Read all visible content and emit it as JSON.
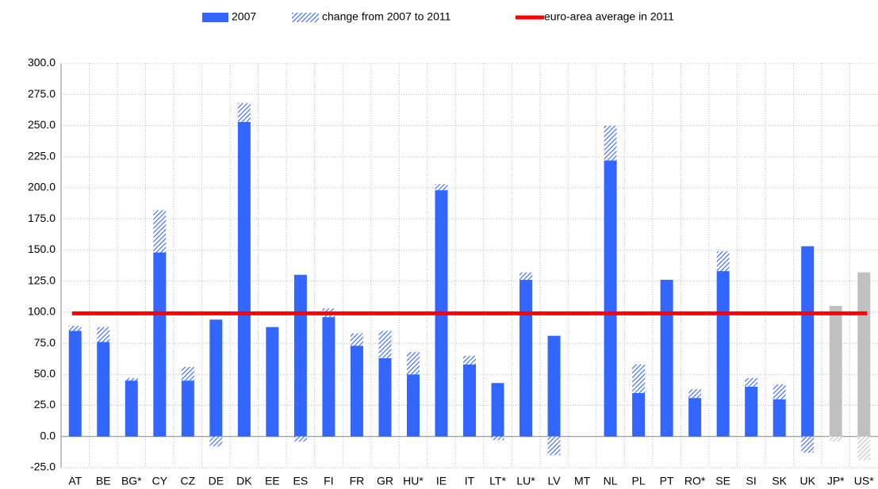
{
  "chart_data": {
    "type": "stacked-bar",
    "categories": [
      "AT",
      "BE",
      "BG*",
      "CY",
      "CZ",
      "DE",
      "DK",
      "EE",
      "ES",
      "FI",
      "FR",
      "GR",
      "HU*",
      "IE",
      "IT",
      "LT*",
      "LU*",
      "LV",
      "MT",
      "NL",
      "PL",
      "PT",
      "RO*",
      "SE",
      "SI",
      "SK",
      "UK",
      "JP*",
      "US*"
    ],
    "series": [
      {
        "name": "2007",
        "style": "solid",
        "colors": [
          "#3366ff",
          "#3366ff",
          "#3366ff",
          "#3366ff",
          "#3366ff",
          "#3366ff",
          "#3366ff",
          "#3366ff",
          "#3366ff",
          "#3366ff",
          "#3366ff",
          "#3366ff",
          "#3366ff",
          "#3366ff",
          "#3366ff",
          "#3366ff",
          "#3366ff",
          "#3366ff",
          "#3366ff",
          "#3366ff",
          "#3366ff",
          "#3366ff",
          "#3366ff",
          "#3366ff",
          "#3366ff",
          "#3366ff",
          "#3366ff",
          "#c0c0c0",
          "#c0c0c0"
        ],
        "values": [
          85,
          76,
          45,
          148,
          45,
          94,
          253,
          88,
          130,
          96,
          73,
          63,
          50,
          198,
          58,
          43,
          126,
          81,
          null,
          222,
          35,
          126,
          31,
          133,
          40,
          30,
          153,
          105,
          132
        ]
      },
      {
        "name": "change from 2007 to 2011",
        "style": "hatched",
        "colors": [
          "#3366ff",
          "#3366ff",
          "#3366ff",
          "#3366ff",
          "#3366ff",
          "#3366ff",
          "#3366ff",
          "#3366ff",
          "#3366ff",
          "#3366ff",
          "#3366ff",
          "#3366ff",
          "#3366ff",
          "#3366ff",
          "#3366ff",
          "#3366ff",
          "#3366ff",
          "#3366ff",
          "#3366ff",
          "#3366ff",
          "#3366ff",
          "#3366ff",
          "#3366ff",
          "#3366ff",
          "#3366ff",
          "#3366ff",
          "#3366ff",
          "#c0c0c0",
          "#c0c0c0"
        ],
        "values": [
          4,
          12,
          2,
          34,
          11,
          -8,
          15,
          0,
          -4,
          7,
          10,
          22,
          18,
          5,
          7,
          -3,
          6,
          -15,
          null,
          28,
          23,
          0,
          7,
          16,
          7,
          12,
          -13,
          -4,
          -19
        ]
      }
    ],
    "reference_line": {
      "name": "euro-area average in 2011",
      "color": "#ff0000",
      "value": 99
    },
    "ylim": [
      -25,
      300
    ],
    "yticks": [
      {
        "value": -25,
        "label": "-25.0"
      },
      {
        "value": 0,
        "label": "0.0"
      },
      {
        "value": 25,
        "label": "25.0"
      },
      {
        "value": 50,
        "label": "50.0"
      },
      {
        "value": 75,
        "label": "75.0"
      },
      {
        "value": 100,
        "label": "100.0"
      },
      {
        "value": 125,
        "label": "125.0"
      },
      {
        "value": 150,
        "label": "150.0"
      },
      {
        "value": 175,
        "label": "175.0"
      },
      {
        "value": 200,
        "label": "200.0"
      },
      {
        "value": 225,
        "label": "225.0"
      },
      {
        "value": 250,
        "label": "250.0"
      },
      {
        "value": 275,
        "label": "275.0"
      },
      {
        "value": 300,
        "label": "300.0"
      }
    ],
    "grid": true
  }
}
